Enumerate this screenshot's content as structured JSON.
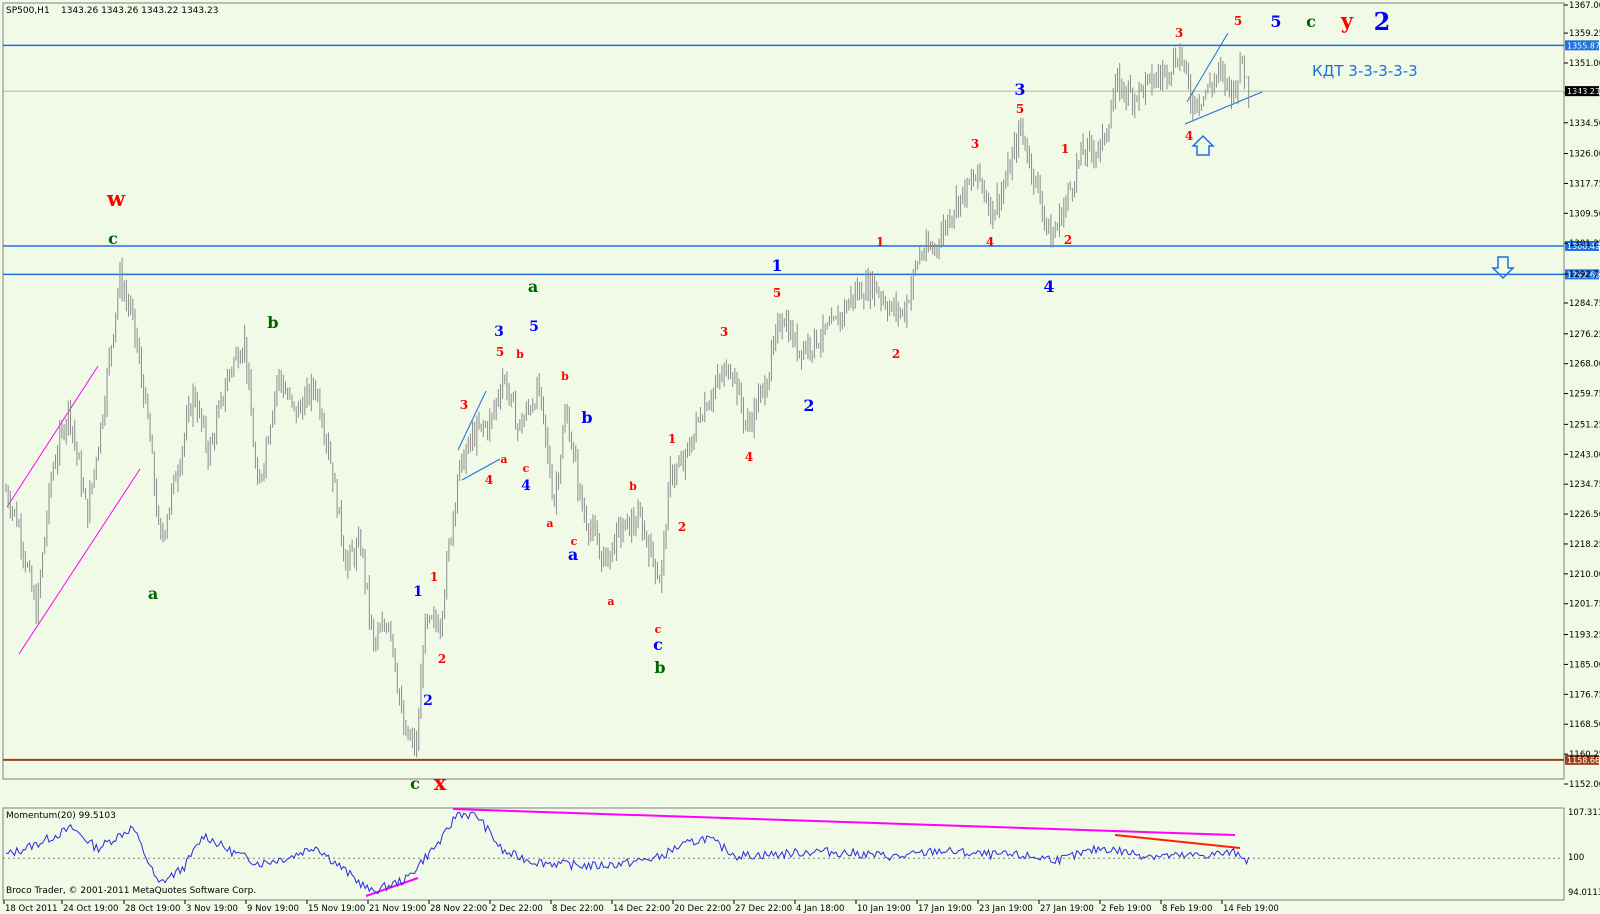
{
  "header": {
    "symbol": "SP500,H1",
    "ohlc": "1343.26 1343.26 1343.22 1343.23"
  },
  "indicator": {
    "title": "Momentum(20) 99.5103",
    "ticks": [
      "107.311",
      "100",
      "94.0113"
    ]
  },
  "copyright": "Broco Trader, © 2001-2011 MetaQuotes Software Corp.",
  "annotation_text": "КДТ 3-3-3-3-3",
  "chart_data": {
    "type": "ohlc",
    "ylim": [
      1152.0,
      1367.0
    ],
    "y_ticks": [
      "1367.00",
      "1359.25",
      "1351.00",
      "1342.75",
      "1334.50",
      "1326.00",
      "1317.75",
      "1309.50",
      "1301.25",
      "1292.75",
      "1284.75",
      "1276.25",
      "1268.00",
      "1259.75",
      "1251.25",
      "1243.00",
      "1234.75",
      "1226.50",
      "1218.25",
      "1210.00",
      "1201.75",
      "1193.25",
      "1185.00",
      "1176.75",
      "1168.50",
      "1160.25",
      "1152.00"
    ],
    "x_ticks": [
      "18 Oct 2011",
      "24 Oct 19:00",
      "28 Oct 19:00",
      "3 Nov 19:00",
      "9 Nov 19:00",
      "15 Nov 19:00",
      "21 Nov 19:00",
      "28 Nov 22:00",
      "2 Dec 22:00",
      "8 Dec 22:00",
      "14 Dec 22:00",
      "20 Dec 22:00",
      "27 Dec 22:00",
      "4 Jan 18:00",
      "10 Jan 19:00",
      "17 Jan 19:00",
      "23 Jan 19:00",
      "27 Jan 19:00",
      "2 Feb 19:00",
      "8 Feb 19:00",
      "14 Feb 19:00"
    ],
    "horizontal_levels": [
      {
        "value": 1355.87,
        "label": "1355.87",
        "color": "#1e6fe0"
      },
      {
        "value": 1343.23,
        "label": "1343.23",
        "color": "#000000"
      },
      {
        "value": 1300.49,
        "label": "1300.49",
        "color": "#1e6fe0"
      },
      {
        "value": 1292.66,
        "label": "1292.66",
        "color": "#1e6fe0"
      },
      {
        "value": 1158.66,
        "label": "1158.66",
        "color": "#a0401c"
      }
    ],
    "price_path": [
      [
        0,
        1233
      ],
      [
        12,
        1224
      ],
      [
        30,
        1199
      ],
      [
        45,
        1238
      ],
      [
        62,
        1256
      ],
      [
        80,
        1226
      ],
      [
        95,
        1254
      ],
      [
        112,
        1292
      ],
      [
        125,
        1280
      ],
      [
        140,
        1252
      ],
      [
        152,
        1218
      ],
      [
        168,
        1238
      ],
      [
        185,
        1260
      ],
      [
        200,
        1243
      ],
      [
        220,
        1266
      ],
      [
        235,
        1275
      ],
      [
        248,
        1232
      ],
      [
        268,
        1265
      ],
      [
        285,
        1254
      ],
      [
        305,
        1262
      ],
      [
        318,
        1245
      ],
      [
        335,
        1213
      ],
      [
        350,
        1218
      ],
      [
        362,
        1190
      ],
      [
        378,
        1198
      ],
      [
        392,
        1166
      ],
      [
        405,
        1162
      ],
      [
        412,
        1195
      ],
      [
        428,
        1197
      ],
      [
        445,
        1237
      ],
      [
        460,
        1248
      ],
      [
        478,
        1252
      ],
      [
        490,
        1265
      ],
      [
        505,
        1250
      ],
      [
        525,
        1261
      ],
      [
        540,
        1230
      ],
      [
        552,
        1255
      ],
      [
        568,
        1228
      ],
      [
        590,
        1213
      ],
      [
        605,
        1222
      ],
      [
        625,
        1225
      ],
      [
        645,
        1208
      ],
      [
        655,
        1238
      ],
      [
        668,
        1240
      ],
      [
        685,
        1255
      ],
      [
        700,
        1262
      ],
      [
        715,
        1268
      ],
      [
        730,
        1250
      ],
      [
        748,
        1262
      ],
      [
        765,
        1282
      ],
      [
        780,
        1272
      ],
      [
        795,
        1274
      ],
      [
        815,
        1278
      ],
      [
        835,
        1287
      ],
      [
        855,
        1290
      ],
      [
        872,
        1283
      ],
      [
        885,
        1282
      ],
      [
        900,
        1298
      ],
      [
        915,
        1300
      ],
      [
        935,
        1312
      ],
      [
        958,
        1320
      ],
      [
        972,
        1310
      ],
      [
        985,
        1318
      ],
      [
        1000,
        1333
      ],
      [
        1015,
        1318
      ],
      [
        1030,
        1302
      ],
      [
        1045,
        1313
      ],
      [
        1060,
        1326
      ],
      [
        1080,
        1328
      ],
      [
        1095,
        1345
      ],
      [
        1110,
        1342
      ],
      [
        1125,
        1345
      ],
      [
        1140,
        1348
      ],
      [
        1158,
        1354
      ],
      [
        1168,
        1340
      ],
      [
        1180,
        1342
      ],
      [
        1195,
        1348
      ],
      [
        1210,
        1343
      ],
      [
        1218,
        1352
      ],
      [
        1225,
        1343
      ]
    ],
    "momentum_path": [
      [
        0,
        100.5
      ],
      [
        30,
        102.2
      ],
      [
        65,
        104.7
      ],
      [
        90,
        101.5
      ],
      [
        125,
        104.8
      ],
      [
        150,
        96.0
      ],
      [
        175,
        98.5
      ],
      [
        195,
        103.6
      ],
      [
        220,
        101.2
      ],
      [
        250,
        99.2
      ],
      [
        280,
        100.2
      ],
      [
        305,
        101.9
      ],
      [
        330,
        98.6
      ],
      [
        360,
        94.8
      ],
      [
        395,
        96.8
      ],
      [
        410,
        99.6
      ],
      [
        430,
        103.0
      ],
      [
        445,
        107.0
      ],
      [
        465,
        106.5
      ],
      [
        490,
        101.0
      ],
      [
        520,
        99.5
      ],
      [
        555,
        99.0
      ],
      [
        580,
        98.8
      ],
      [
        610,
        99.2
      ],
      [
        645,
        100.2
      ],
      [
        660,
        101.6
      ],
      [
        690,
        103.2
      ],
      [
        720,
        100.4
      ],
      [
        760,
        100.6
      ],
      [
        800,
        101.1
      ],
      [
        840,
        100.7
      ],
      [
        880,
        100.2
      ],
      [
        920,
        101.2
      ],
      [
        960,
        100.6
      ],
      [
        1000,
        100.4
      ],
      [
        1040,
        99.8
      ],
      [
        1080,
        101.6
      ],
      [
        1120,
        100.5
      ],
      [
        1160,
        100.3
      ],
      [
        1190,
        100.6
      ],
      [
        1215,
        100.9
      ],
      [
        1225,
        99.5
      ]
    ],
    "wave_labels": [
      {
        "t": "w",
        "x": 116,
        "y": 206,
        "c": "#ff0000",
        "s": 21
      },
      {
        "t": "c",
        "x": 113,
        "y": 244,
        "c": "#006400",
        "s": 16
      },
      {
        "t": "b",
        "x": 273,
        "y": 328,
        "c": "#006400",
        "s": 16
      },
      {
        "t": "a",
        "x": 153,
        "y": 599,
        "c": "#006400",
        "s": 16
      },
      {
        "t": "a",
        "x": 533,
        "y": 292,
        "c": "#006400",
        "s": 16
      },
      {
        "t": "3",
        "x": 499,
        "y": 336,
        "c": "#0000ff",
        "s": 14
      },
      {
        "t": "5",
        "x": 534,
        "y": 331,
        "c": "#0000ff",
        "s": 14
      },
      {
        "t": "5",
        "x": 500,
        "y": 356,
        "c": "#ff0000",
        "s": 12
      },
      {
        "t": "b",
        "x": 520,
        "y": 358,
        "c": "#ff0000",
        "s": 11
      },
      {
        "t": "b",
        "x": 565,
        "y": 380,
        "c": "#ff0000",
        "s": 11
      },
      {
        "t": "3",
        "x": 464,
        "y": 409,
        "c": "#ff0000",
        "s": 12
      },
      {
        "t": "b",
        "x": 587,
        "y": 423,
        "c": "#0000ff",
        "s": 16
      },
      {
        "t": "a",
        "x": 504,
        "y": 463,
        "c": "#ff0000",
        "s": 11
      },
      {
        "t": "c",
        "x": 526,
        "y": 472,
        "c": "#ff0000",
        "s": 11
      },
      {
        "t": "4",
        "x": 489,
        "y": 484,
        "c": "#ff0000",
        "s": 12
      },
      {
        "t": "4",
        "x": 526,
        "y": 490,
        "c": "#0000ff",
        "s": 14
      },
      {
        "t": "a",
        "x": 550,
        "y": 527,
        "c": "#ff0000",
        "s": 11
      },
      {
        "t": "c",
        "x": 574,
        "y": 545,
        "c": "#ff0000",
        "s": 11
      },
      {
        "t": "a",
        "x": 573,
        "y": 560,
        "c": "#0000ff",
        "s": 16
      },
      {
        "t": "b",
        "x": 633,
        "y": 490,
        "c": "#ff0000",
        "s": 11
      },
      {
        "t": "a",
        "x": 611,
        "y": 605,
        "c": "#ff0000",
        "s": 11
      },
      {
        "t": "c",
        "x": 658,
        "y": 633,
        "c": "#ff0000",
        "s": 11
      },
      {
        "t": "c",
        "x": 658,
        "y": 650,
        "c": "#0000ff",
        "s": 16
      },
      {
        "t": "b",
        "x": 660,
        "y": 673,
        "c": "#006400",
        "s": 16
      },
      {
        "t": "1",
        "x": 434,
        "y": 581,
        "c": "#ff0000",
        "s": 12
      },
      {
        "t": "1",
        "x": 418,
        "y": 596,
        "c": "#0000ff",
        "s": 14
      },
      {
        "t": "2",
        "x": 442,
        "y": 663,
        "c": "#ff0000",
        "s": 12
      },
      {
        "t": "2",
        "x": 428,
        "y": 705,
        "c": "#0000ff",
        "s": 14
      },
      {
        "t": "c",
        "x": 415,
        "y": 789,
        "c": "#006400",
        "s": 16
      },
      {
        "t": "x",
        "x": 440,
        "y": 790,
        "c": "#ff0000",
        "s": 21
      },
      {
        "t": "1",
        "x": 672,
        "y": 443,
        "c": "#ff0000",
        "s": 12
      },
      {
        "t": "2",
        "x": 682,
        "y": 531,
        "c": "#ff0000",
        "s": 12
      },
      {
        "t": "3",
        "x": 724,
        "y": 336,
        "c": "#ff0000",
        "s": 12
      },
      {
        "t": "4",
        "x": 749,
        "y": 461,
        "c": "#ff0000",
        "s": 12
      },
      {
        "t": "1",
        "x": 777,
        "y": 271,
        "c": "#0000ff",
        "s": 16
      },
      {
        "t": "5",
        "x": 777,
        "y": 297,
        "c": "#ff0000",
        "s": 12
      },
      {
        "t": "2",
        "x": 809,
        "y": 411,
        "c": "#0000ff",
        "s": 16
      },
      {
        "t": "1",
        "x": 880,
        "y": 246,
        "c": "#ff0000",
        "s": 12
      },
      {
        "t": "2",
        "x": 896,
        "y": 358,
        "c": "#ff0000",
        "s": 12
      },
      {
        "t": "3",
        "x": 975,
        "y": 148,
        "c": "#ff0000",
        "s": 12
      },
      {
        "t": "4",
        "x": 990,
        "y": 246,
        "c": "#ff0000",
        "s": 12
      },
      {
        "t": "3",
        "x": 1020,
        "y": 95,
        "c": "#0000ff",
        "s": 16
      },
      {
        "t": "5",
        "x": 1020,
        "y": 113,
        "c": "#ff0000",
        "s": 12
      },
      {
        "t": "1",
        "x": 1065,
        "y": 153,
        "c": "#ff0000",
        "s": 12
      },
      {
        "t": "2",
        "x": 1068,
        "y": 244,
        "c": "#ff0000",
        "s": 12
      },
      {
        "t": "4",
        "x": 1049,
        "y": 292,
        "c": "#0000ff",
        "s": 16
      },
      {
        "t": "3",
        "x": 1179,
        "y": 37,
        "c": "#ff0000",
        "s": 12
      },
      {
        "t": "5",
        "x": 1238,
        "y": 25,
        "c": "#ff0000",
        "s": 12
      },
      {
        "t": "4",
        "x": 1189,
        "y": 140,
        "c": "#ff0000",
        "s": 12
      },
      {
        "t": "5",
        "x": 1276,
        "y": 27,
        "c": "#0000ff",
        "s": 16
      },
      {
        "t": "c",
        "x": 1311,
        "y": 27,
        "c": "#006400",
        "s": 16
      },
      {
        "t": "y",
        "x": 1347,
        "y": 28,
        "c": "#ff0000",
        "s": 21
      },
      {
        "t": "2",
        "x": 1382,
        "y": 30,
        "c": "#0000ff",
        "s": 24
      }
    ]
  }
}
